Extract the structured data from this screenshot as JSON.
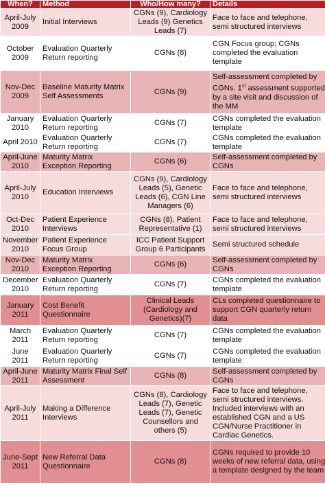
{
  "headers": {
    "when": "When?",
    "method": "Method",
    "who": "Who/How many?",
    "details": "Details"
  },
  "rows": [
    {
      "when": "April-July 2009",
      "method": "Initial Interviews",
      "who": "CGNs (9), Cardiology Leads (9) Genetics Leads (7)",
      "details": "Face to face and telephone, semi structured interviews",
      "shade": "light"
    },
    {
      "when": "October 2009",
      "method": "Evaluation Quarterly Return reporting",
      "who": "CGNs (8)",
      "details": "CGN Focus group; CGNs completed the evaluation template",
      "shade": "white"
    },
    {
      "when": "Nov-Dec 2009",
      "method": "Baseline Maturity Matrix Self Assessments",
      "who": "CGNs (9)",
      "details": "Self-assessment completed by CGNs. 1st assessment supported by a site visit and discussion of the MM",
      "shade": "dark"
    },
    {
      "when": "January 2010",
      "method": "Evaluation Quarterly Return reporting",
      "who": "CGNs (7)",
      "details": "CGNs completed the evaluation template",
      "shade": "white"
    },
    {
      "when": "April 2010",
      "method": "Evaluation Quarterly Return reporting",
      "who": "CGNs (7)",
      "details": "CGNs completed the evaluation template",
      "shade": "white"
    },
    {
      "when": "April-June 2010",
      "method": "Maturity Matrix Exception Reporting",
      "who": "CGNs (6)",
      "details": "Self-assessment completed by CGNs",
      "shade": "dark"
    },
    {
      "when": "April-July 2010",
      "method": "Education Interviews",
      "who": "CGNs (9), Cardiology Leads (5), Genetic Leads (6), CGN Line Managers (6)",
      "details": "Face to face and telephone, semi structured interviews",
      "shade": "light"
    },
    {
      "when": "Oct-Dec 2010",
      "method": "Patient Experience Interviews",
      "who": "CGNs (8), Patient Representative (1)",
      "details": "Face to face and telephone, semi structured interviews",
      "shade": "light"
    },
    {
      "when": "November 2010",
      "method": "Patient Experience Focus Group",
      "who": "ICC Patient Support Group 6 Participants",
      "details": "Semi structured schedule",
      "shade": "light"
    },
    {
      "when": "Nov-Dec 2010",
      "method": "Maturity Matrix Exception Reporting",
      "who": "CGNs (6)",
      "details": "Self-assessment completed by CGNs",
      "shade": "dark"
    },
    {
      "when": "December 2010",
      "method": "Evaluation Quarterly Return reporting",
      "who": "CGNs (7)",
      "details": "CGNs completed the evaluation template",
      "shade": "white"
    },
    {
      "when": "January 2011",
      "method": "Cost Benefit Questionnaire",
      "who": "Clinical Leads (Cardiology and Genetics)(7)",
      "details": "CLs completed questionnaire to support CGN quarterly return data",
      "shade": "red"
    },
    {
      "when": "March 2011",
      "method": "Evaluation Quarterly Return reporting",
      "who": "CGNs (7)",
      "details": "CGNs completed the evaluation template",
      "shade": "white"
    },
    {
      "when": "June 2011",
      "method": "Evaluation Quarterly Return reporting",
      "who": "CGNs (7)",
      "details": "CGNs completed the evaluation template",
      "shade": "white"
    },
    {
      "when": "April-June 2011",
      "method": "Maturity Matrix Final Self Assessment",
      "who": "CGNs (8)",
      "details": "Self-assessment completed by CGNs",
      "shade": "dark"
    },
    {
      "when": "April-July 2011",
      "method": "Making a Difference Interviews",
      "who": "CGNs (8), Cardiology Leads (7), Genetic Leads (7), Genetic Counsellors and others (5)",
      "details": "Face to face and telephone, semi structured interviews. Included interviews with an established CGN and a US CGN/Nurse Practitioner in Cardiac Genetics.",
      "shade": "light"
    },
    {
      "when": "June-Sept 2011",
      "method": "New Referral Data Questionnaire",
      "who": "CGNs (8)",
      "details": "CGNs required to provide 10 weeks of new referral data, using a template designed by the team",
      "shade": "red"
    }
  ]
}
